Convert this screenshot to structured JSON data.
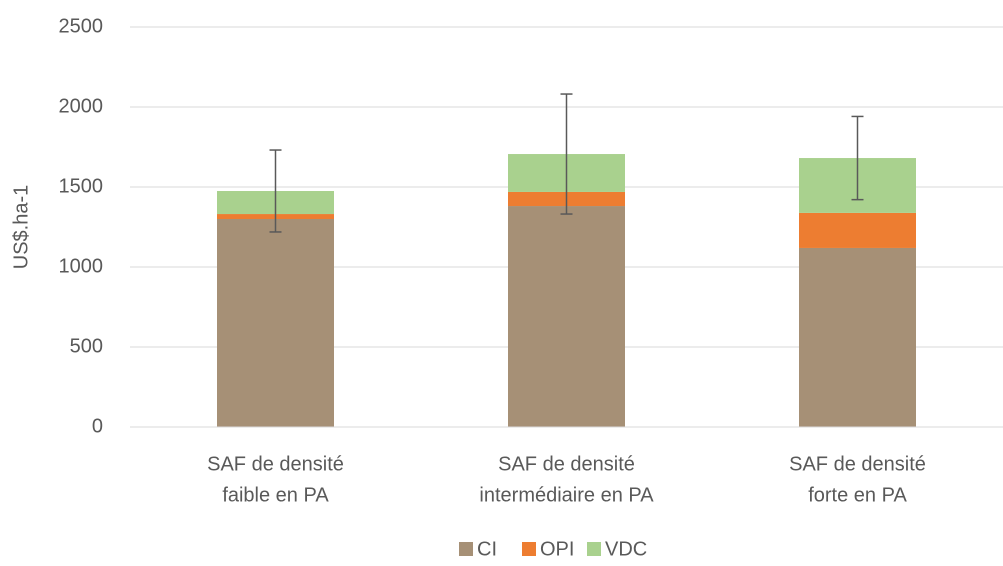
{
  "chart_data": {
    "type": "stacked_bar",
    "y_label": "US$.ha-1",
    "categories": [
      [
        "SAF de densité",
        "faible en PA"
      ],
      [
        "SAF de densité",
        "intermédiaire en PA"
      ],
      [
        "SAF de densité",
        "forte en PA"
      ]
    ],
    "series": [
      {
        "name": "CI",
        "color": "#a69076",
        "values": [
          1300,
          1381,
          1119
        ]
      },
      {
        "name": "OPI",
        "color": "#ed7d31",
        "values": [
          31,
          88,
          219
        ]
      },
      {
        "name": "VDC",
        "color": "#a9d18e",
        "values": [
          144,
          237,
          343
        ]
      }
    ],
    "errors": [
      256,
      375,
      260
    ],
    "ylim": [
      0,
      2500
    ],
    "yticks": [
      0,
      500,
      1000,
      1500,
      2000,
      2500
    ],
    "grid": true,
    "legend": "bottom"
  }
}
